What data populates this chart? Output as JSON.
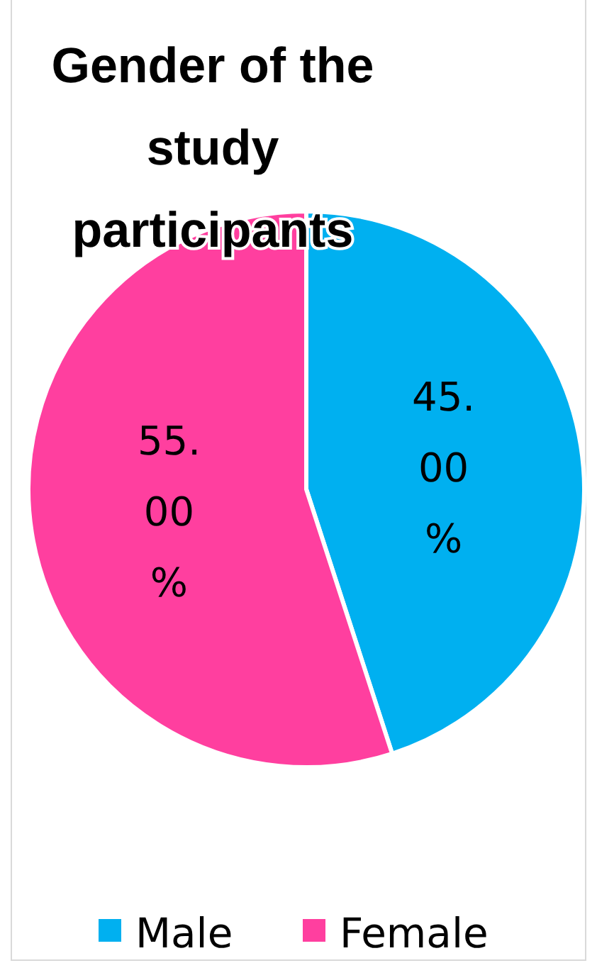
{
  "chart_data": {
    "type": "pie",
    "title": "Gender of the study participants",
    "categories": [
      "Male",
      "Female"
    ],
    "values": [
      45,
      55
    ],
    "colors": [
      "#00b0f0",
      "#ff3f9f"
    ],
    "value_labels": [
      "45.00%",
      "55.00%"
    ],
    "legend": "bottom"
  }
}
